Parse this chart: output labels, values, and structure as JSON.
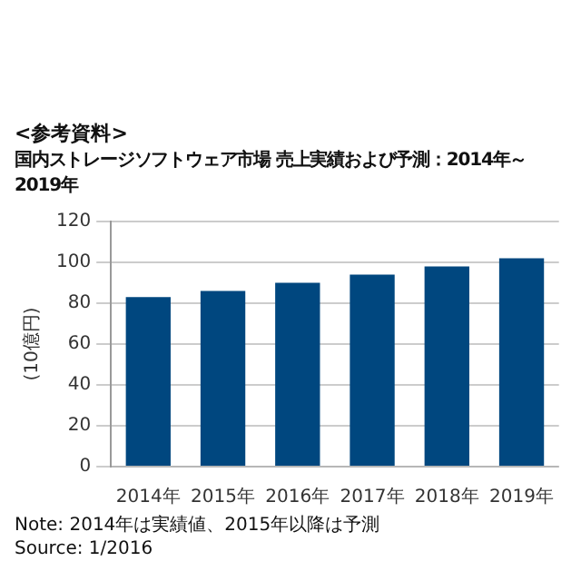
{
  "chart_data": {
    "type": "bar",
    "title": "<参考資料>",
    "subtitle": "国内ストレージソフトウェア市場 売上実績および予測：2014年～2019年",
    "ylabel": "(10億円)",
    "categories": [
      "2014年",
      "2015年",
      "2016年",
      "2017年",
      "2018年",
      "2019年"
    ],
    "values": [
      83,
      86,
      90,
      94,
      98,
      102
    ],
    "color": "#00477f",
    "ylim": [
      0,
      120
    ],
    "yticks": [
      0,
      20,
      40,
      60,
      80,
      100,
      120
    ],
    "grid": "y",
    "legend": false,
    "annotations": [
      "Note: 2014年は実績値、2015年以降は予測",
      "Source: 1/2016"
    ]
  }
}
